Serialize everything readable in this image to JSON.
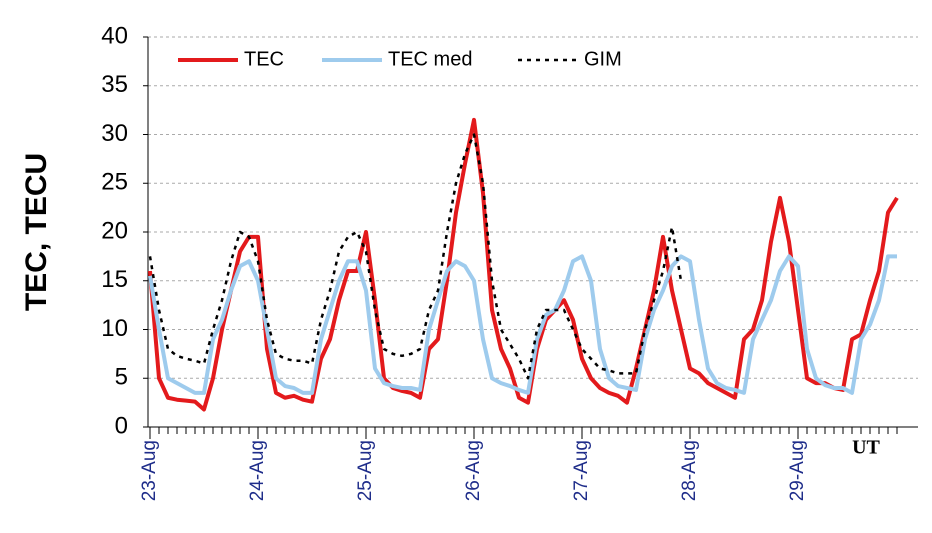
{
  "chart_data": {
    "type": "line",
    "y_label": "TEC, TECU",
    "x_label": "UT",
    "categories": [
      "23-Aug",
      null,
      null,
      null,
      null,
      null,
      null,
      null,
      null,
      null,
      null,
      null,
      "24-Aug",
      null,
      null,
      null,
      null,
      null,
      null,
      null,
      null,
      null,
      null,
      null,
      "25-Aug",
      null,
      null,
      null,
      null,
      null,
      null,
      null,
      null,
      null,
      null,
      null,
      "26-Aug",
      null,
      null,
      null,
      null,
      null,
      null,
      null,
      null,
      null,
      null,
      null,
      "27-Aug",
      null,
      null,
      null,
      null,
      null,
      null,
      null,
      null,
      null,
      null,
      null,
      "28-Aug",
      null,
      null,
      null,
      null,
      null,
      null,
      null,
      null,
      null,
      null,
      null,
      "29-Aug",
      null,
      null,
      null,
      null,
      null,
      null,
      null,
      null,
      null,
      null,
      null
    ],
    "series": [
      {
        "name": "TEC",
        "color": "#e31a1c",
        "values": [
          16,
          5,
          3,
          2.8,
          2.7,
          2.6,
          1.8,
          5,
          10,
          14,
          18,
          19.5,
          19.5,
          8,
          3.5,
          3,
          3.2,
          2.8,
          2.6,
          7,
          9,
          13,
          16,
          16,
          20,
          13,
          5,
          4,
          3.7,
          3.5,
          3,
          8,
          9,
          15,
          22,
          27,
          31.5,
          24,
          12,
          8,
          6,
          3,
          2.5,
          8,
          11,
          12,
          13,
          11,
          7,
          5,
          4,
          3.5,
          3.2,
          2.5,
          6,
          10,
          14,
          19.5,
          14,
          10,
          6,
          5.5,
          4.5,
          4,
          3.5,
          3,
          9,
          10,
          13,
          19,
          23.5,
          19,
          12,
          5,
          4.5,
          4.5,
          4,
          3.8,
          9,
          9.5,
          13,
          16,
          22,
          23.5
        ]
      },
      {
        "name": "TEC med",
        "color": "#9ecbed",
        "values": [
          15.5,
          10,
          5,
          4.5,
          4,
          3.5,
          3.5,
          9,
          11,
          14,
          16.5,
          17,
          15,
          10,
          5,
          4.2,
          4,
          3.5,
          3.5,
          9,
          12,
          15,
          17,
          17,
          14,
          6,
          4.5,
          4.2,
          4,
          4,
          3.8,
          10,
          13,
          16,
          17,
          16.5,
          15,
          9,
          5,
          4.5,
          4.2,
          3.8,
          3.5,
          9,
          11.5,
          12,
          14,
          17,
          17.5,
          15,
          8,
          5,
          4.2,
          4,
          3.8,
          9,
          12,
          14,
          16.5,
          17.5,
          17,
          11,
          6,
          4.5,
          4,
          3.8,
          3.5,
          9,
          11,
          13,
          16,
          17.5,
          16.5,
          8,
          5,
          4.3,
          4,
          4,
          3.5,
          9,
          10.5,
          13,
          17.5,
          17.5
        ]
      },
      {
        "name": "GIM",
        "color": "#000000",
        "values": [
          17.5,
          12,
          8,
          7.3,
          7,
          6.8,
          6.5,
          10,
          13,
          17,
          20,
          19.5,
          17,
          11,
          7.5,
          7,
          6.8,
          6.8,
          6.5,
          11,
          14,
          18,
          19.5,
          20,
          18,
          12,
          8,
          7.5,
          7.3,
          7.5,
          8,
          12,
          14,
          20,
          25,
          28,
          30,
          25,
          15,
          10,
          8.5,
          7,
          5,
          10,
          12,
          12,
          12,
          10,
          8,
          7,
          6,
          5.8,
          5.5,
          5.5,
          5.5,
          10,
          13,
          16,
          20.5,
          15,
          null,
          null,
          null,
          null,
          null,
          null,
          null,
          null,
          null,
          null,
          null,
          null,
          null,
          null,
          null,
          null,
          null,
          null,
          null,
          null,
          null,
          null,
          null,
          null
        ]
      }
    ],
    "ylim": [
      0,
      40
    ],
    "yticks": [
      0,
      5,
      10,
      15,
      20,
      25,
      30,
      35,
      40
    ],
    "grid": true,
    "legend": "top-left"
  }
}
